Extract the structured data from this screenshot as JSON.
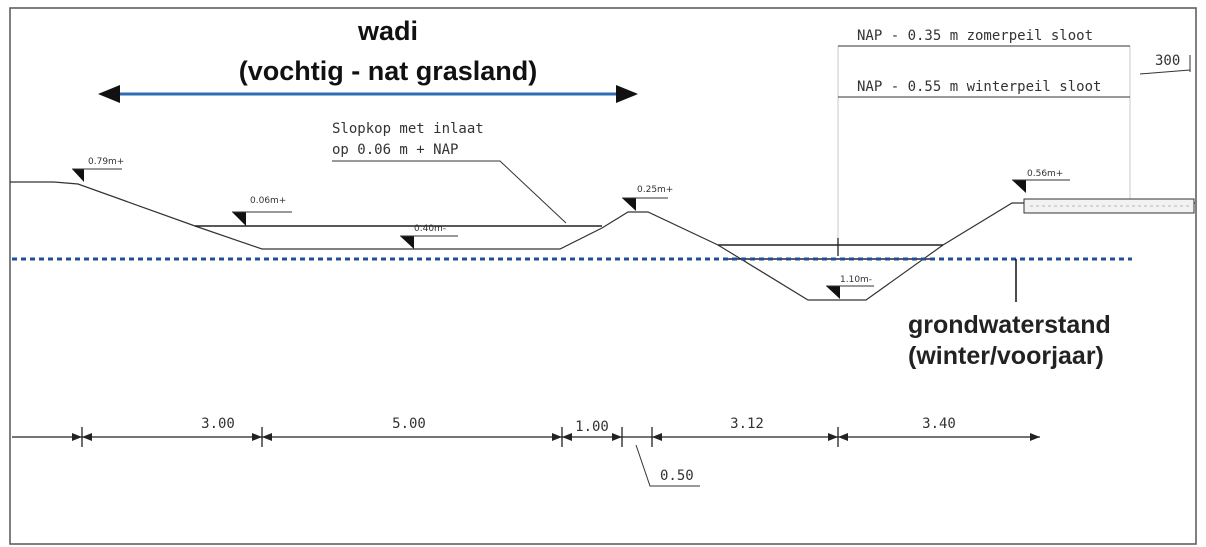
{
  "title": {
    "line1": "wadi",
    "line2": "(vochtig - nat grasland)"
  },
  "annotations": {
    "inlet_line1": "Slopkop met inlaat",
    "inlet_line2": "op 0.06 m + NAP",
    "summer_level": "NAP - 0.35 m zomerpeil sloot",
    "winter_level": "NAP - 0.55 m winterpeil sloot",
    "width_300": "300",
    "groundwater_line1": "grondwaterstand",
    "groundwater_line2": "(winter/voorjaar)"
  },
  "level_labels": {
    "left_top": "0.79m+",
    "wadi_edge": "0.06m+",
    "wadi_bottom": "0.40m-",
    "mound": "0.25m+",
    "ditch_bottom": "1.10m-",
    "right_top": "0.56m+"
  },
  "dimensions": {
    "d1": "3.00",
    "d2": "5.00",
    "d3": "1.00",
    "d4": "3.12",
    "d5": "3.40",
    "d6": "0.50"
  },
  "colors": {
    "arrow": "#2e6db4",
    "groundwater": "#1f4e9e",
    "lines": "#222222",
    "frame": "#555555"
  }
}
